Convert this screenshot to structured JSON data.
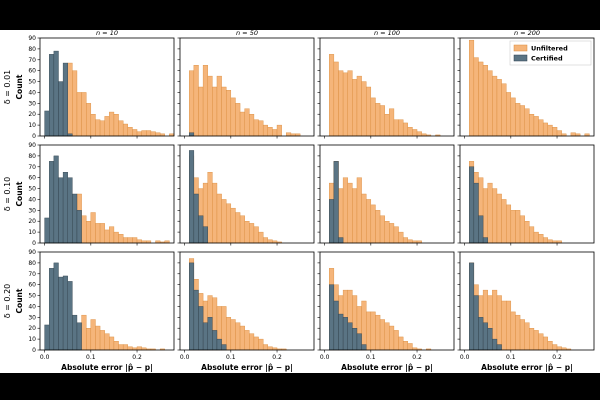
{
  "colors": {
    "unfiltered_fill": "#f5b57a",
    "unfiltered_edge": "#d98a3a",
    "certified_fill": "#5a7484",
    "certified_edge": "#2e3f4a",
    "frame": "#000000",
    "letterbox": "#000000"
  },
  "chart_data": {
    "type": "bar",
    "layout": "3x4 grid of overlaid histograms",
    "bin_width": 0.01,
    "xlim": [
      -0.01,
      0.28
    ],
    "ylim": [
      0,
      90
    ],
    "xticks": [
      0.0,
      0.1,
      0.2
    ],
    "xtick_labels": [
      "0.0",
      "0.1",
      "0.2"
    ],
    "yticks": [
      0,
      10,
      20,
      30,
      40,
      50,
      60,
      70,
      80,
      90
    ],
    "ytick_labels": [
      "0",
      "10",
      "20",
      "30",
      "40",
      "50",
      "60",
      "70",
      "80",
      "90"
    ],
    "xlabel": "Absolute error |p̂ − p|",
    "ylabel": "Count",
    "column_titles": [
      "n = 10",
      "n = 50",
      "n = 100",
      "n = 200"
    ],
    "row_titles": [
      "δ = 0.01",
      "δ = 0.10",
      "δ = 0.20"
    ],
    "legend": {
      "position": "upper right",
      "labels": [
        "Unfiltered",
        "Certified"
      ]
    },
    "series_names": [
      "Unfiltered",
      "Certified"
    ],
    "panels": [
      {
        "row": 0,
        "col": 0,
        "unfiltered": [
          0,
          0,
          0,
          0,
          0,
          67,
          60,
          40,
          40,
          30,
          20,
          15,
          14,
          18,
          22,
          20,
          14,
          11,
          8,
          6,
          4,
          5,
          5,
          4,
          3,
          2,
          0,
          2
        ],
        "certified": [
          23,
          75,
          78,
          50,
          67,
          2
        ]
      },
      {
        "row": 0,
        "col": 1,
        "unfiltered": [
          0,
          60,
          65,
          45,
          65,
          55,
          45,
          55,
          45,
          42,
          35,
          30,
          22,
          25,
          20,
          15,
          14,
          10,
          8,
          6,
          10,
          0,
          3,
          2,
          2
        ],
        "certified": [
          0,
          3
        ]
      },
      {
        "row": 0,
        "col": 2,
        "unfiltered": [
          0,
          75,
          68,
          60,
          58,
          60,
          52,
          55,
          50,
          45,
          35,
          30,
          28,
          20,
          25,
          15,
          15,
          12,
          8,
          6,
          4,
          2,
          1,
          0,
          1
        ],
        "certified": []
      },
      {
        "row": 0,
        "col": 3,
        "unfiltered": [
          0,
          88,
          72,
          68,
          65,
          60,
          55,
          52,
          48,
          40,
          35,
          30,
          28,
          25,
          20,
          18,
          15,
          12,
          10,
          8,
          5,
          2,
          0,
          3,
          2,
          0,
          2
        ],
        "certified": []
      },
      {
        "row": 1,
        "col": 0,
        "unfiltered": [
          0,
          0,
          0,
          0,
          0,
          0,
          0,
          45,
          25,
          20,
          28,
          18,
          18,
          12,
          15,
          10,
          8,
          5,
          5,
          5,
          3,
          2,
          2,
          0,
          2,
          1,
          2
        ],
        "certified": [
          23,
          75,
          80,
          60,
          65,
          60,
          45,
          30
        ]
      },
      {
        "row": 1,
        "col": 1,
        "unfiltered": [
          0,
          80,
          60,
          50,
          55,
          65,
          55,
          45,
          40,
          36,
          32,
          28,
          25,
          20,
          18,
          15,
          10,
          5,
          3,
          2,
          1
        ],
        "certified": [
          0,
          85,
          45,
          25,
          15
        ]
      },
      {
        "row": 1,
        "col": 2,
        "unfiltered": [
          0,
          55,
          75,
          50,
          60,
          55,
          50,
          60,
          45,
          40,
          35,
          30,
          25,
          20,
          18,
          15,
          10,
          5,
          3,
          2,
          2
        ],
        "certified": [
          0,
          40,
          75,
          5
        ]
      },
      {
        "row": 1,
        "col": 3,
        "unfiltered": [
          0,
          75,
          65,
          60,
          50,
          55,
          50,
          45,
          40,
          35,
          30,
          30,
          25,
          20,
          15,
          10,
          8,
          5,
          3,
          2,
          2
        ],
        "certified": [
          0,
          70,
          55,
          25,
          5
        ]
      },
      {
        "row": 2,
        "col": 0,
        "unfiltered": [
          0,
          0,
          0,
          0,
          0,
          0,
          0,
          0,
          32,
          20,
          28,
          22,
          18,
          15,
          12,
          8,
          5,
          5,
          3,
          2,
          3,
          2,
          1,
          1,
          0,
          1
        ],
        "certified": [
          23,
          75,
          80,
          67,
          68,
          63,
          32,
          25
        ]
      },
      {
        "row": 2,
        "col": 1,
        "unfiltered": [
          0,
          84,
          65,
          52,
          45,
          50,
          48,
          40,
          40,
          30,
          28,
          25,
          22,
          18,
          15,
          12,
          10,
          5,
          3,
          2,
          1,
          1
        ],
        "certified": [
          0,
          80,
          55,
          40,
          25,
          30,
          18,
          10,
          5
        ]
      },
      {
        "row": 2,
        "col": 2,
        "unfiltered": [
          0,
          75,
          60,
          50,
          55,
          55,
          50,
          40,
          45,
          35,
          35,
          32,
          28,
          25,
          22,
          18,
          12,
          8,
          6,
          2,
          1,
          0,
          1
        ],
        "certified": [
          0,
          60,
          45,
          33,
          30,
          25,
          20,
          15,
          5
        ]
      },
      {
        "row": 2,
        "col": 3,
        "unfiltered": [
          0,
          80,
          60,
          50,
          55,
          50,
          55,
          50,
          45,
          45,
          35,
          32,
          28,
          25,
          20,
          18,
          15,
          12,
          8,
          5,
          3,
          2,
          1
        ],
        "certified": [
          0,
          80,
          50,
          30,
          25,
          20,
          10,
          5
        ]
      }
    ]
  }
}
